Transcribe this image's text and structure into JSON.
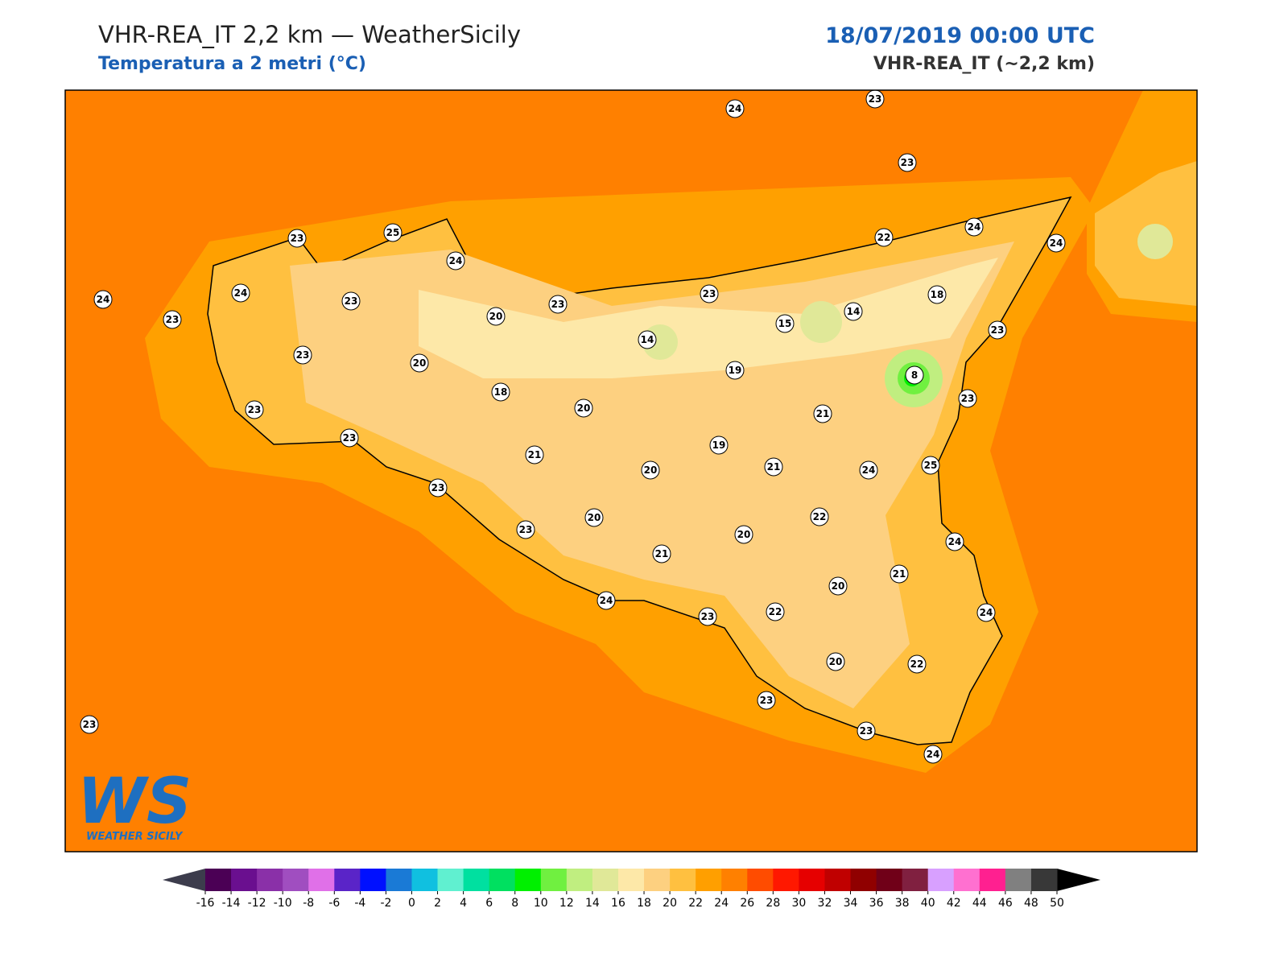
{
  "header": {
    "title": "VHR-REA_IT 2,2 km — WeatherSicily",
    "subtitle": "Temperatura a 2 metri (°C)",
    "date": "18/07/2019 00:00 UTC",
    "model": "VHR-REA_IT (~2,2 km)"
  },
  "map": {
    "stations": [
      24,
      23,
      23,
      23,
      25,
      24,
      24,
      23,
      24,
      23,
      20,
      23,
      23,
      22,
      24,
      24,
      18,
      14,
      15,
      14,
      23,
      20,
      19,
      8,
      23,
      23,
      18,
      20,
      21,
      23,
      23,
      21,
      20,
      19,
      21,
      24,
      25,
      23,
      20,
      22,
      23,
      20,
      24,
      21,
      21,
      20,
      24,
      23,
      22,
      24,
      20,
      22,
      23,
      23,
      24,
      23
    ],
    "sea_color": "#ff8000",
    "coast_sea_color": "#ffa000",
    "land_color": "#ffc040",
    "inland_color": "#fdd080",
    "high_color": "#fde8a8"
  },
  "logo": {
    "text": "WS",
    "caption": "WEATHER SICILY"
  },
  "colorbar": {
    "ticks": [
      -16,
      -14,
      -12,
      -10,
      -8,
      -6,
      -4,
      -2,
      0,
      2,
      4,
      6,
      8,
      10,
      12,
      14,
      16,
      18,
      20,
      22,
      24,
      26,
      28,
      30,
      32,
      34,
      36,
      38,
      40,
      42,
      44,
      46,
      48,
      50
    ],
    "colors": [
      "#4b0055",
      "#6a0f8f",
      "#8a30a8",
      "#a04ec0",
      "#e070e8",
      "#5a24c8",
      "#0010ff",
      "#1a7ad6",
      "#10c0e0",
      "#60f0d0",
      "#00e0a0",
      "#00e060",
      "#00f000",
      "#70f040",
      "#c0ee80",
      "#e0e898",
      "#fde8a8",
      "#fdd080",
      "#ffc040",
      "#ff9f00",
      "#ff8000",
      "#ff4c00",
      "#ff1800",
      "#e60000",
      "#c00000",
      "#900000",
      "#700018",
      "#802040",
      "#d8a0ff",
      "#ff70d0",
      "#ff2090",
      "#808080",
      "#383838"
    ],
    "under_color": "#3c3c4c",
    "over_color": "#000000"
  }
}
